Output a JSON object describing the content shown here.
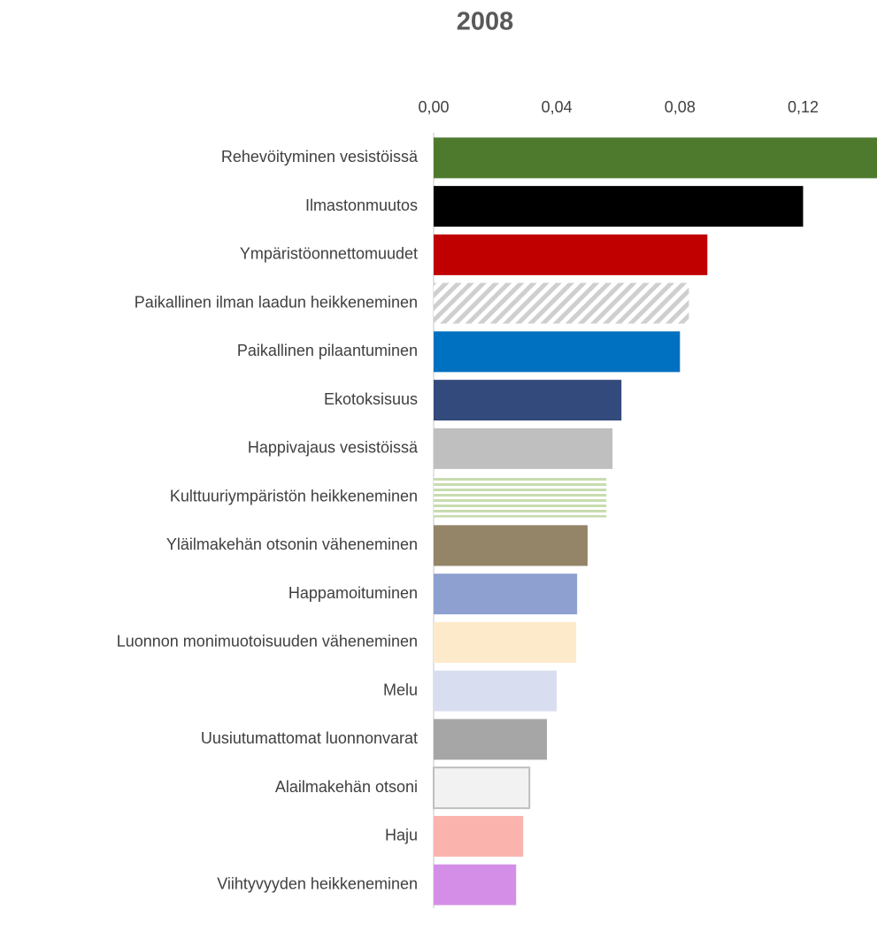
{
  "chart_data": {
    "type": "barh",
    "title": "2008",
    "categories": [
      "Rehevöityminen vesistöissä",
      "Ilmastonmuutos",
      "Ympäristöonnettomuudet",
      "Paikallinen ilman laadun heikkeneminen",
      "Paikallinen pilaantuminen",
      "Ekotoksisuus",
      "Happivajaus vesistöissä",
      "Kulttuuriympäristön heikkeneminen",
      "Yläilmakehän otsonin väheneminen",
      "Happamoituminen",
      "Luonnon monimuotoisuuden väheneminen",
      "Melu",
      "Uusiutumattomat luonnonvarat",
      "Alailmakehän otsoni",
      "Haju",
      "Viihtyvyyden heikkeneminen"
    ],
    "values": [
      0.144,
      0.12,
      0.0889,
      0.0829,
      0.08,
      0.061,
      0.0581,
      0.0561,
      0.05,
      0.0466,
      0.0463,
      0.04,
      0.0368,
      0.0311,
      0.0291,
      0.0268
    ],
    "colors": [
      "#4e7a2e",
      "#000000",
      "#c00000",
      "url(#hatch-gray)",
      "#0070c0",
      "#334a7c",
      "#bfbfbf",
      "url(#stripe-green)",
      "#948468",
      "#8ea0cf",
      "#fdeacb",
      "#d9ddf0",
      "#a6a6a6",
      "#f2f2f2",
      "#fbb3ae",
      "#d48ee8"
    ],
    "edgecolors": [
      null,
      null,
      null,
      null,
      null,
      null,
      null,
      null,
      null,
      null,
      null,
      null,
      null,
      "#bfbfbf",
      null,
      null
    ],
    "xlim": [
      0,
      0.144
    ],
    "xticks": [
      {
        "value": 0,
        "label": "0,00"
      },
      {
        "value": 0.04,
        "label": "0,04"
      },
      {
        "value": 0.08,
        "label": "0,08"
      },
      {
        "value": 0.12,
        "label": "0,12"
      }
    ],
    "xaxis_position": "top"
  }
}
